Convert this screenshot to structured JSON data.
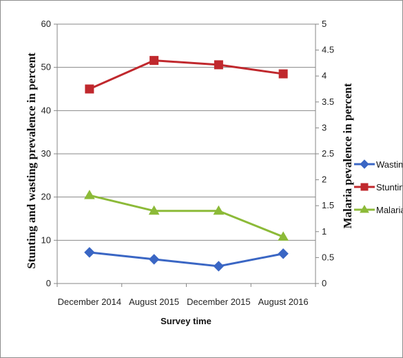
{
  "chart_data": {
    "type": "line",
    "categories": [
      "December 2014",
      "August 2015",
      "December 2015",
      "August 2016"
    ],
    "xlabel": "Survey time",
    "ylabel_left": "Stunting and wasting prevalence in percent",
    "ylabel_right": "Malaria pevalence in percent",
    "ylim_left": [
      0,
      60
    ],
    "yticks_left": [
      "0",
      "10",
      "20",
      "30",
      "40",
      "50",
      "60"
    ],
    "ylim_right": [
      0,
      5
    ],
    "yticks_right": [
      "0",
      "0.5",
      "1",
      "1.5",
      "2",
      "2.5",
      "3",
      "3.5",
      "4",
      "4.5",
      "5"
    ],
    "grid": true,
    "legend_position": "right",
    "series": [
      {
        "name": "Wasting",
        "axis": "left",
        "marker": "diamond",
        "color": "#3a66c4",
        "values": [
          7.2,
          5.6,
          4.0,
          6.9
        ]
      },
      {
        "name": "Stunting",
        "axis": "left",
        "marker": "square",
        "color": "#c0282d",
        "values": [
          45.0,
          51.6,
          50.6,
          48.5
        ]
      },
      {
        "name": "Malaria",
        "axis": "right",
        "marker": "triangle",
        "color": "#8cba38",
        "values": [
          1.7,
          1.4,
          1.4,
          0.9
        ]
      }
    ]
  }
}
